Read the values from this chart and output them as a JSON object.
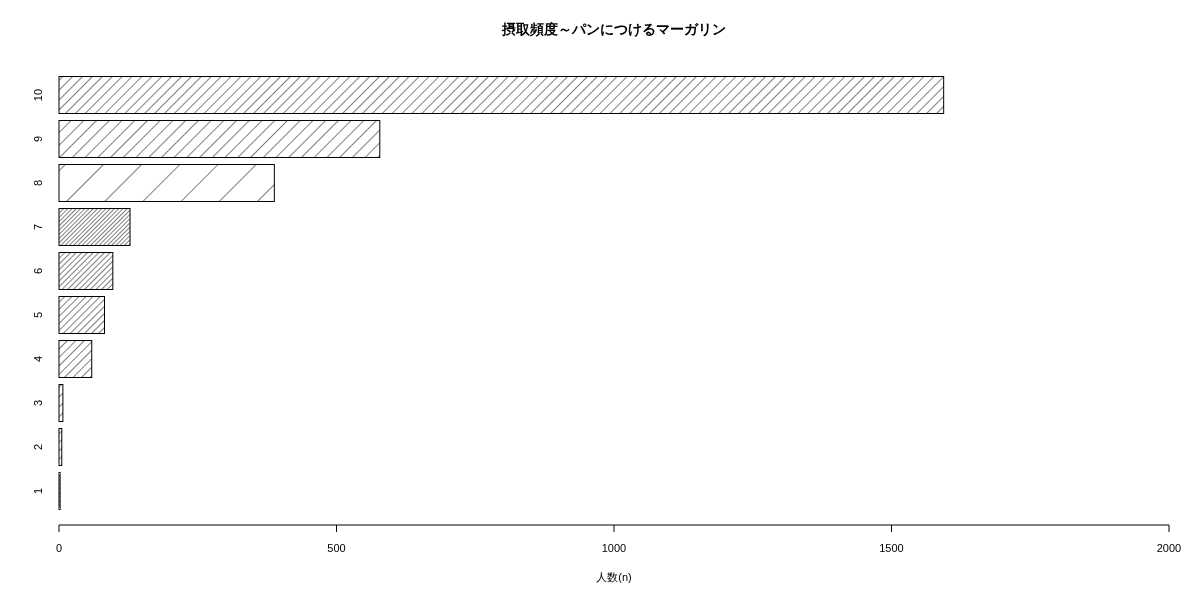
{
  "chart_data": {
    "type": "bar",
    "orientation": "horizontal",
    "title": "摂取頻度～パンにつけるマーガリン",
    "xlabel": "人数(n)",
    "categories": [
      "10",
      "9",
      "8",
      "7",
      "6",
      "5",
      "4",
      "3",
      "2",
      "1"
    ],
    "values": [
      1594,
      578,
      388,
      128,
      97,
      82,
      59,
      7,
      5,
      2
    ],
    "xlim": [
      0,
      2000
    ],
    "xticks": [
      0,
      500,
      1000,
      1500,
      2000
    ],
    "grid": false
  }
}
